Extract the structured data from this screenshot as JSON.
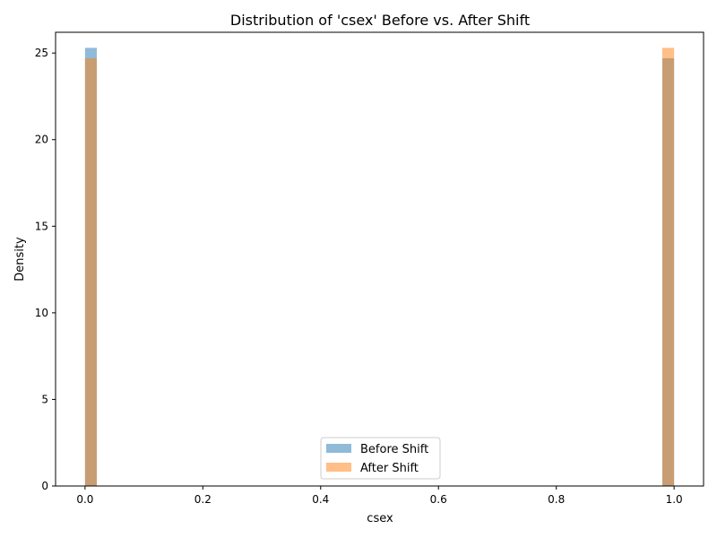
{
  "chart_data": {
    "type": "bar",
    "title": "Distribution of 'csex' Before vs. After Shift",
    "xlabel": "csex",
    "ylabel": "Density",
    "xlim": [
      -0.05,
      1.05
    ],
    "ylim": [
      0,
      26.2
    ],
    "xticks": [
      "0.0",
      "0.2",
      "0.4",
      "0.6",
      "0.8",
      "1.0"
    ],
    "xtick_values": [
      0.0,
      0.2,
      0.4,
      0.6,
      0.8,
      1.0
    ],
    "yticks": [
      "0",
      "5",
      "10",
      "15",
      "20",
      "25"
    ],
    "ytick_values": [
      0,
      5,
      10,
      15,
      20,
      25
    ],
    "bin_width": 0.02,
    "legend_position": "lower center",
    "grid": false,
    "series": [
      {
        "name": "Before Shift",
        "color": "#1f77b4",
        "opacity": 0.5,
        "bins": [
          {
            "x0": 0.0,
            "x1": 0.02,
            "density": 25.3
          },
          {
            "x0": 0.98,
            "x1": 1.0,
            "density": 24.7
          }
        ]
      },
      {
        "name": "After Shift",
        "color": "#ff7f0e",
        "opacity": 0.5,
        "bins": [
          {
            "x0": 0.0,
            "x1": 0.02,
            "density": 24.7
          },
          {
            "x0": 0.98,
            "x1": 1.0,
            "density": 25.3
          }
        ]
      }
    ]
  }
}
